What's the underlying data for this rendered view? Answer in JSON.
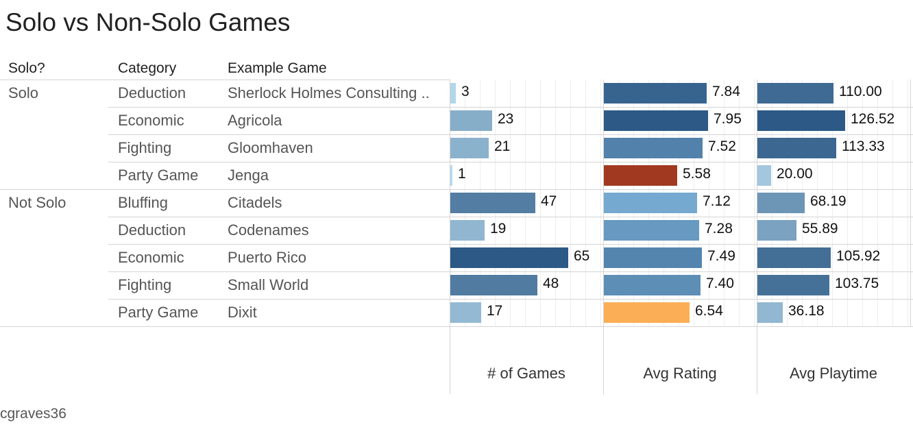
{
  "title": "Solo vs Non-Solo Games",
  "headers": {
    "solo": "Solo?",
    "category": "Category",
    "example": "Example Game"
  },
  "footer": "cgraves36",
  "chart_data": {
    "type": "bar",
    "rows": [
      {
        "solo": "Solo",
        "category": "Deduction",
        "example": "Sherlock Holmes Consulting ..",
        "games": 3,
        "rating": "7.84",
        "playtime": "110.00"
      },
      {
        "solo": "",
        "category": "Economic",
        "example": "Agricola",
        "games": 23,
        "rating": "7.95",
        "playtime": "126.52"
      },
      {
        "solo": "",
        "category": "Fighting",
        "example": "Gloomhaven",
        "games": 21,
        "rating": "7.52",
        "playtime": "113.33"
      },
      {
        "solo": "",
        "category": "Party Game",
        "example": "Jenga",
        "games": 1,
        "rating": "5.58",
        "playtime": "20.00"
      },
      {
        "solo": "Not Solo",
        "category": "Bluffing",
        "example": "Citadels",
        "games": 47,
        "rating": "7.12",
        "playtime": "68.19"
      },
      {
        "solo": "",
        "category": "Deduction",
        "example": "Codenames",
        "games": 19,
        "rating": "7.28",
        "playtime": "55.89"
      },
      {
        "solo": "",
        "category": "Economic",
        "example": "Puerto Rico",
        "games": 65,
        "rating": "7.49",
        "playtime": "105.92"
      },
      {
        "solo": "",
        "category": "Fighting",
        "example": "Small World",
        "games": 48,
        "rating": "7.40",
        "playtime": "103.75"
      },
      {
        "solo": "",
        "category": "Party Game",
        "example": "Dixit",
        "games": 17,
        "rating": "6.54",
        "playtime": "36.18"
      }
    ],
    "columns": [
      {
        "key": "games",
        "label": "# of Games",
        "max": 65,
        "decimals": 0
      },
      {
        "key": "rating",
        "label": "Avg Rating",
        "max": 7.95,
        "decimals": 2
      },
      {
        "key": "playtime",
        "label": "Avg Playtime",
        "max": 126.52,
        "decimals": 2
      }
    ],
    "colors": {
      "games_scale": [
        "#b9dcef",
        "#2c5985"
      ],
      "playtime_scale": [
        "#b9dcef",
        "#2c5985"
      ],
      "rating_scale": [
        "#7fb4da",
        "#2c5985"
      ],
      "rating_low": "#a0391f",
      "rating_mid_low": "#fbae55"
    }
  }
}
